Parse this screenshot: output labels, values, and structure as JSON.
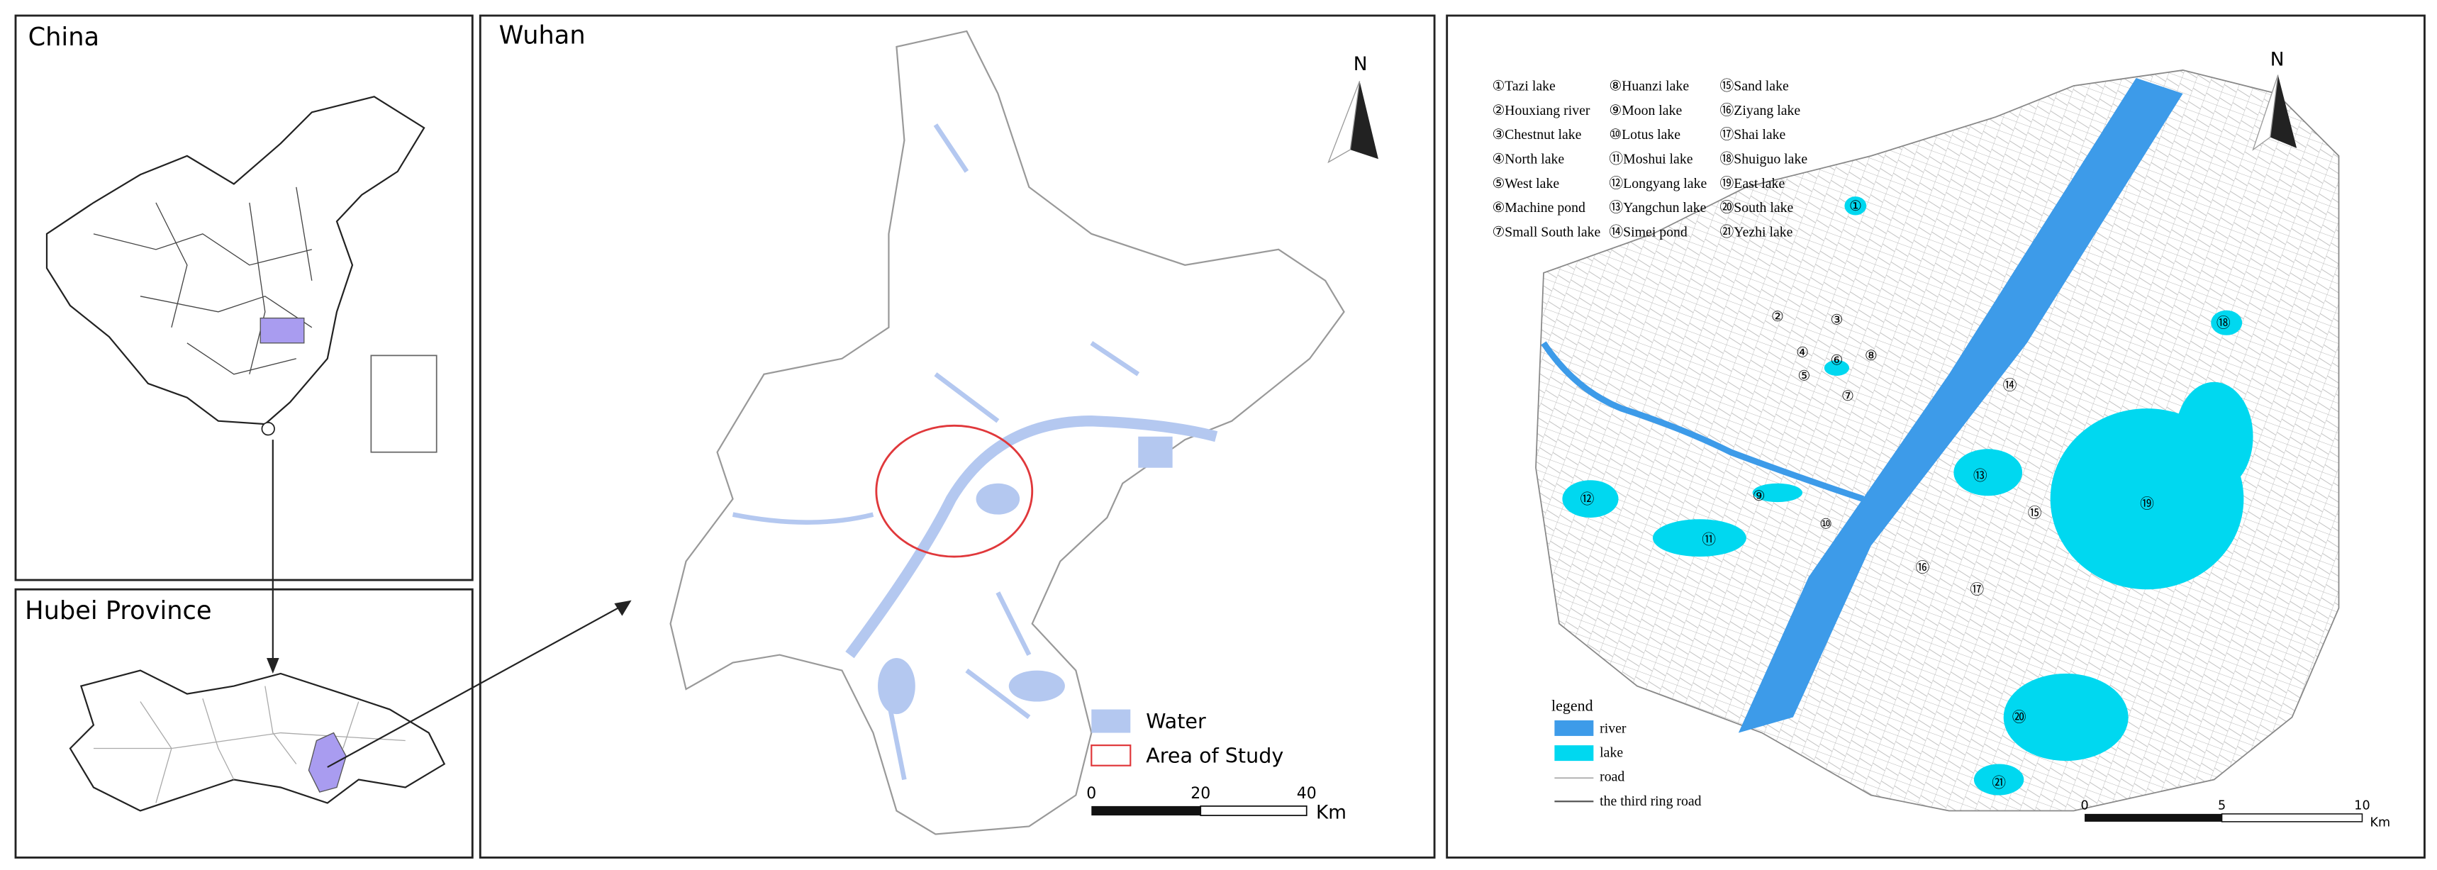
{
  "panels": {
    "china": {
      "title": "China"
    },
    "hubei": {
      "title": "Hubei Province"
    },
    "wuhan": {
      "title": "Wuhan",
      "north": "N",
      "legend": [
        "Water",
        "Area of Study"
      ],
      "scale": {
        "ticks": [
          "0",
          "20",
          "40"
        ],
        "unit": "Km"
      }
    },
    "study_area": {
      "north": "N",
      "lakes": [
        {
          "number": "①",
          "name": "Tazi lake"
        },
        {
          "number": "②",
          "name": "Houxiang river"
        },
        {
          "number": "③",
          "name": "Chestnut lake"
        },
        {
          "number": "④",
          "name": "North lake"
        },
        {
          "number": "⑤",
          "name": "West lake"
        },
        {
          "number": "⑥",
          "name": "Machine pond"
        },
        {
          "number": "⑦",
          "name": "Small South lake"
        },
        {
          "number": "⑧",
          "name": "Huanzi lake"
        },
        {
          "number": "⑨",
          "name": "Moon lake"
        },
        {
          "number": "⑩",
          "name": "Lotus lake"
        },
        {
          "number": "⑪",
          "name": "Moshui lake"
        },
        {
          "number": "⑫",
          "name": "Longyang lake"
        },
        {
          "number": "⑬",
          "name": "Yangchun lake"
        },
        {
          "number": "⑭",
          "name": "Simei pond"
        },
        {
          "number": "⑮",
          "name": "Sand lake"
        },
        {
          "number": "⑯",
          "name": "Ziyang lake"
        },
        {
          "number": "⑰",
          "name": "Shai lake"
        },
        {
          "number": "⑱",
          "name": "Shuiguo lake"
        },
        {
          "number": "⑲",
          "name": "East lake"
        },
        {
          "number": "⑳",
          "name": "South lake"
        },
        {
          "number": "㉑",
          "name": "Yezhi lake"
        }
      ],
      "legend": {
        "title": "legend",
        "items": [
          "river",
          "lake",
          "road",
          "the third ring road"
        ]
      },
      "scale": {
        "ticks": [
          "0",
          "5",
          "10"
        ],
        "unit": "Km"
      }
    }
  }
}
